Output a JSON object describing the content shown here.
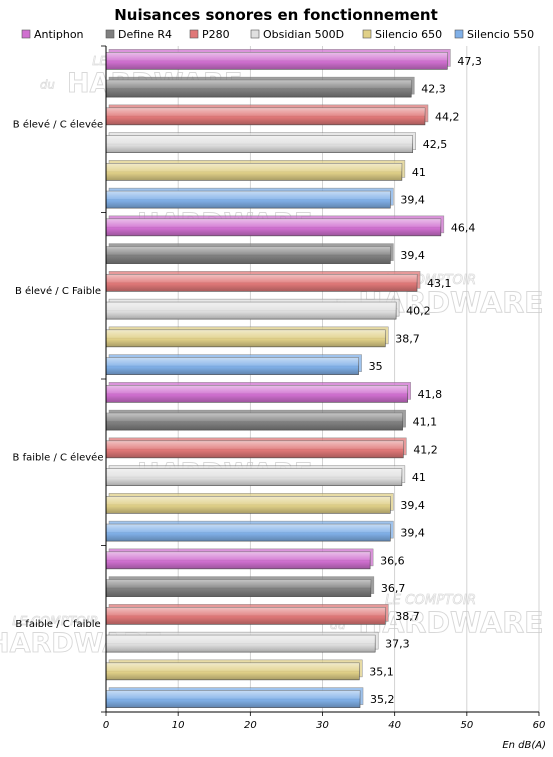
{
  "chart_data": {
    "type": "bar",
    "orientation": "horizontal",
    "title": "Nuisances sonores en fonctionnement",
    "xlabel": "En dB(A)",
    "xlim": [
      0,
      60
    ],
    "xticks": [
      0,
      10,
      20,
      30,
      40,
      50,
      60
    ],
    "xtick_labels": [
      "0",
      "10",
      "20",
      "30",
      "40",
      "50",
      "60"
    ],
    "grid": "vertical",
    "legend_position": "top",
    "categories": [
      "B élevé / C élevée",
      "B élevé / C Faible",
      "B faible / C élevée",
      "B faible / C faible"
    ],
    "series": [
      {
        "name": "Antiphon",
        "color": "#d070d0",
        "values": [
          47.3,
          46.4,
          41.8,
          36.6
        ],
        "labels": [
          "47,3",
          "46,4",
          "41,8",
          "36,6"
        ]
      },
      {
        "name": "Define R4",
        "color": "#808080",
        "values": [
          42.3,
          39.4,
          41.1,
          36.7
        ],
        "labels": [
          "42,3",
          "39,4",
          "41,1",
          "36,7"
        ]
      },
      {
        "name": "P280",
        "color": "#e07878",
        "values": [
          44.2,
          43.1,
          41.2,
          38.7
        ],
        "labels": [
          "44,2",
          "43,1",
          "41,2",
          "38,7"
        ]
      },
      {
        "name": "Obsidian 500D",
        "color": "#e0e0e0",
        "values": [
          42.5,
          40.2,
          41,
          37.3
        ],
        "labels": [
          "42,5",
          "40,2",
          "41",
          "37,3"
        ]
      },
      {
        "name": "Silencio 650",
        "color": "#e0d088",
        "values": [
          41,
          38.7,
          39.4,
          35.1
        ],
        "labels": [
          "41",
          "38,7",
          "39,4",
          "35,1"
        ]
      },
      {
        "name": "Silencio 550",
        "color": "#80b0e8",
        "values": [
          39.4,
          35,
          39.4,
          35.2
        ],
        "labels": [
          "39,4",
          "35",
          "39,4",
          "35,2"
        ]
      }
    ]
  },
  "watermark": {
    "small": "du",
    "top": "LE COMPTOIR",
    "big": "HARDWARE"
  }
}
